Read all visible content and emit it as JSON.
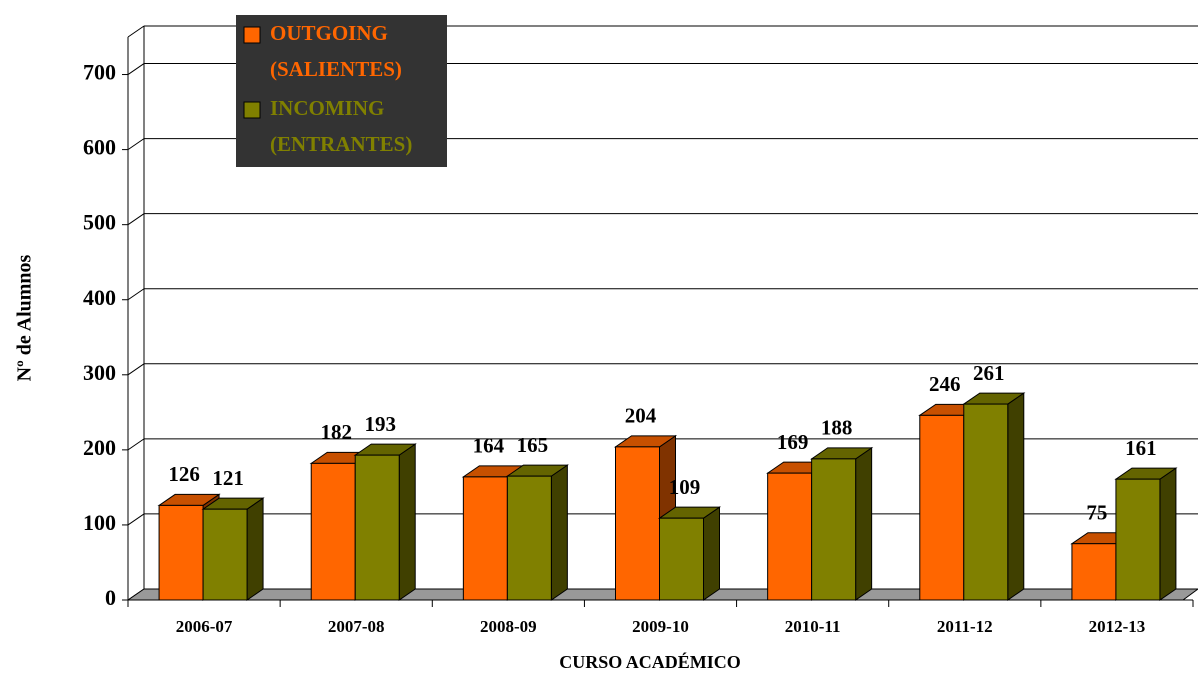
{
  "chart_data": {
    "type": "bar3d",
    "x_label": "CURSO ACADÉMICO",
    "y_label": "Nº de Alumnos",
    "categories": [
      "2006-07",
      "2007-08",
      "2008-09",
      "2009-10",
      "2010-11",
      "2011-12",
      "2012-13"
    ],
    "series": [
      {
        "name": "OUTGOING (SALIENTES)",
        "color": "#ff6600",
        "values": [
          126,
          182,
          164,
          204,
          169,
          246,
          75
        ]
      },
      {
        "name": "INCOMING (ENTRANTES)",
        "color": "#808000",
        "values": [
          121,
          193,
          165,
          109,
          188,
          261,
          161
        ]
      }
    ],
    "ylim": [
      0,
      750
    ],
    "yticks": [
      0,
      100,
      200,
      300,
      400,
      500,
      600,
      700
    ],
    "grid": true,
    "legend": "top-left"
  }
}
